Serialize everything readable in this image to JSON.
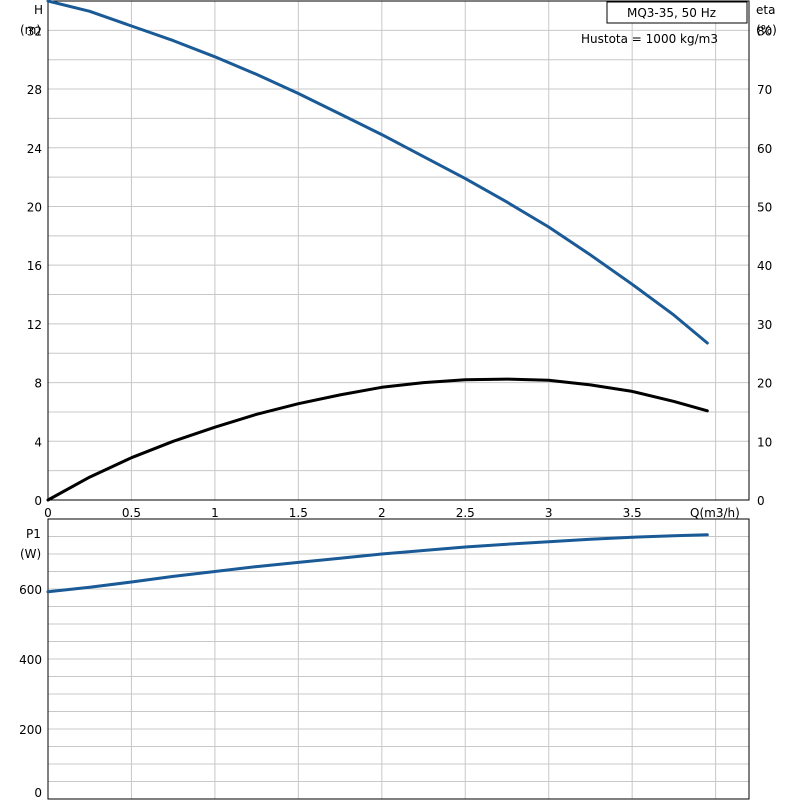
{
  "chart_data": [
    {
      "type": "line",
      "title_box": "MQ3-35, 50 Hz",
      "annotation": "Hustota = 1000 kg/m3",
      "xlabel": "Q(m3/h)",
      "xlim": [
        0,
        4.2
      ],
      "x_ticks": [
        "0",
        "0.5",
        "1",
        "1.5",
        "2",
        "2.5",
        "3",
        "3.5"
      ],
      "x_tick_values": [
        0,
        0.5,
        1,
        1.5,
        2,
        2.5,
        3,
        3.5
      ],
      "left_axis": {
        "label": "H",
        "unit": "(m)",
        "ylim": [
          0,
          34
        ],
        "ticks": [
          0,
          4,
          8,
          12,
          16,
          20,
          24,
          28,
          32
        ]
      },
      "right_axis": {
        "label": "eta",
        "unit": "(%)",
        "ylim": [
          0,
          85
        ],
        "ticks": [
          0,
          10,
          20,
          30,
          40,
          50,
          60,
          70,
          80
        ]
      },
      "grid": true,
      "series": [
        {
          "axis": "left",
          "color": "#1a5a96",
          "x": [
            0,
            0.25,
            0.5,
            0.75,
            1.0,
            1.25,
            1.5,
            1.75,
            2.0,
            2.25,
            2.5,
            2.75,
            3.0,
            3.25,
            3.5,
            3.75,
            3.95
          ],
          "y": [
            34.0,
            33.3,
            32.3,
            31.3,
            30.2,
            29.0,
            27.7,
            26.3,
            24.9,
            23.4,
            21.9,
            20.3,
            18.6,
            16.7,
            14.7,
            12.6,
            10.7
          ]
        },
        {
          "axis": "right",
          "color": "#000000",
          "x": [
            0,
            0.25,
            0.5,
            0.75,
            1.0,
            1.25,
            1.5,
            1.75,
            2.0,
            2.25,
            2.5,
            2.75,
            3.0,
            3.25,
            3.5,
            3.75,
            3.95
          ],
          "y": [
            0,
            3.9,
            7.2,
            10.0,
            12.4,
            14.6,
            16.4,
            17.9,
            19.2,
            20.0,
            20.5,
            20.6,
            20.4,
            19.6,
            18.5,
            16.8,
            15.2
          ]
        }
      ]
    },
    {
      "type": "line",
      "left_axis": {
        "label": "P1",
        "unit": "(W)",
        "ylim": [
          0,
          800
        ],
        "ticks": [
          0,
          200,
          400,
          600
        ]
      },
      "xlim": [
        0,
        4.2
      ],
      "grid": true,
      "series": [
        {
          "axis": "left",
          "color": "#1a5a96",
          "x": [
            0,
            0.25,
            0.5,
            0.75,
            1.0,
            1.25,
            1.5,
            1.75,
            2.0,
            2.25,
            2.5,
            2.75,
            3.0,
            3.25,
            3.5,
            3.75,
            3.95
          ],
          "y": [
            592,
            605,
            620,
            636,
            650,
            664,
            676,
            688,
            700,
            710,
            720,
            728,
            735,
            742,
            748,
            752,
            755
          ]
        }
      ]
    }
  ]
}
